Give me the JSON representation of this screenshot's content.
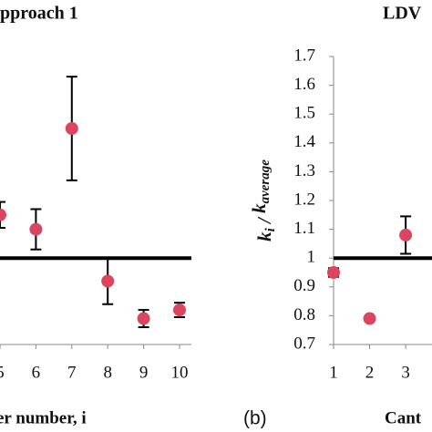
{
  "chart_data": [
    {
      "type": "scatter",
      "title": "pproach 1",
      "x_label": "er number, i",
      "x": [
        5,
        6,
        7,
        8,
        9,
        10
      ],
      "values": [
        1.15,
        1.1,
        1.45,
        0.92,
        0.79,
        0.82
      ],
      "errors": [
        0.045,
        0.07,
        0.18,
        0.08,
        0.03,
        0.025
      ],
      "color": "#dc4560",
      "xlim": [
        5,
        10.33
      ],
      "ylim": [
        0.7,
        1.7
      ],
      "xticks": [
        5,
        6,
        7,
        8,
        9,
        10
      ],
      "reference_line": 1
    },
    {
      "type": "scatter",
      "title": "LDV",
      "x_label": "Cant",
      "panel_label": "(b)",
      "y_label": [
        "k",
        "i",
        " / ",
        "k",
        "average"
      ],
      "x": [
        1,
        2,
        3
      ],
      "values": [
        0.95,
        0.79,
        1.08
      ],
      "errors": [
        0.015,
        null,
        0.065
      ],
      "color": "#dc4560",
      "xlim": [
        1,
        3.73
      ],
      "ylim": [
        0.7,
        1.7
      ],
      "xticks": [
        1,
        2,
        3
      ],
      "yticks": [
        0.7,
        0.8,
        0.9,
        1,
        1.1,
        1.2,
        1.3,
        1.4,
        1.5,
        1.6,
        1.7
      ],
      "reference_line": 1
    }
  ]
}
